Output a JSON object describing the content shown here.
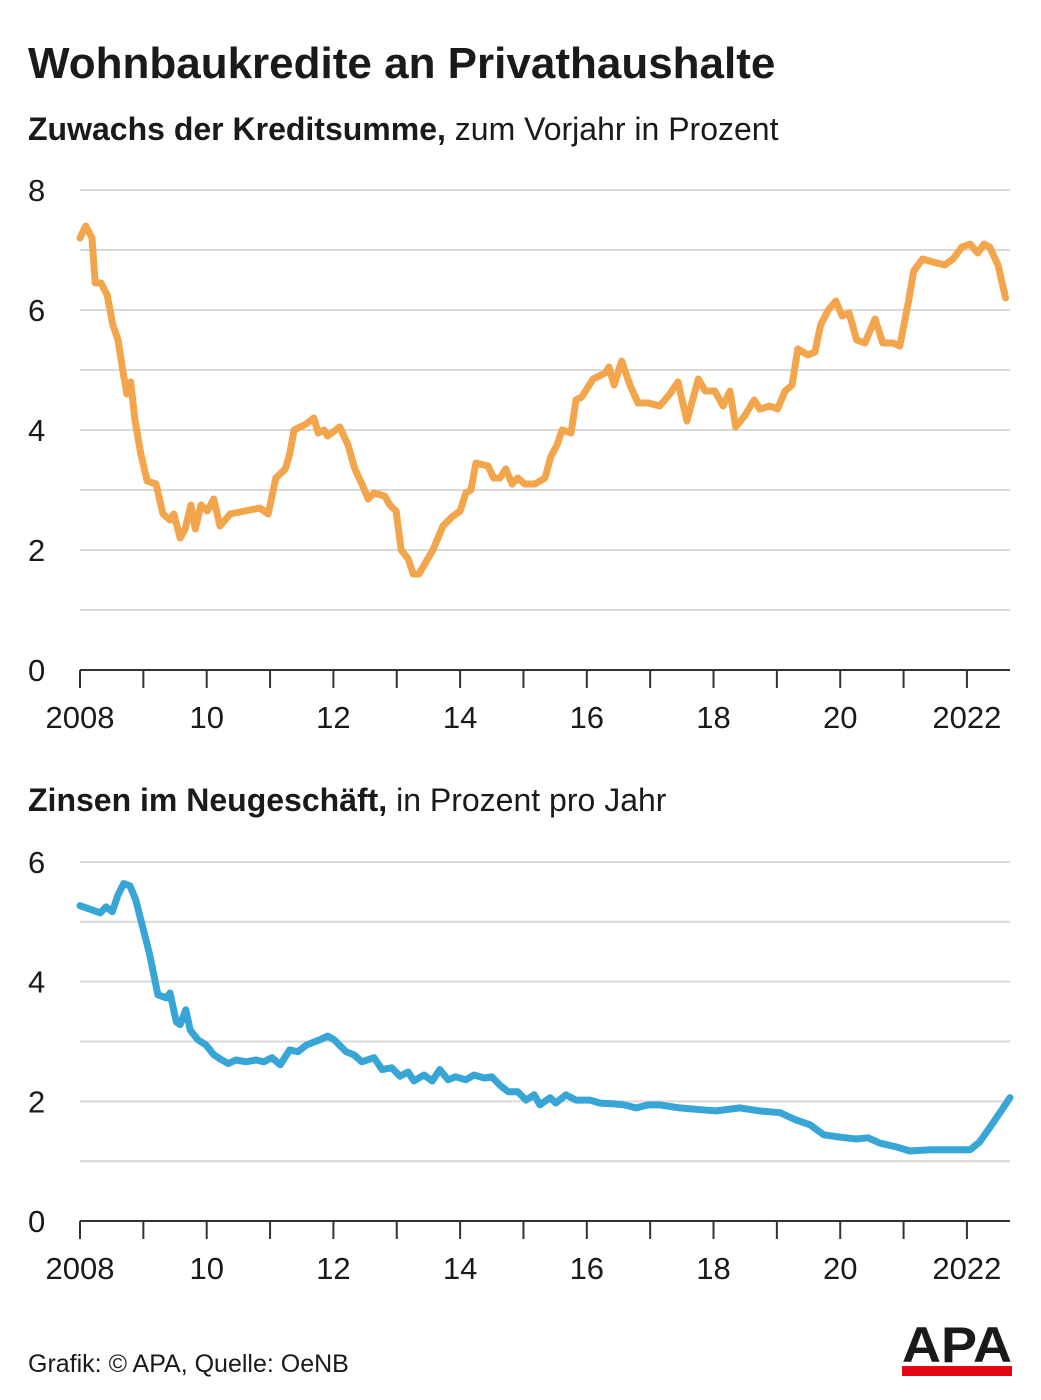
{
  "header": {
    "title": "Wohnbaukredite an Privathaushalte"
  },
  "chart_data": [
    {
      "type": "line",
      "subtitle_bold": "Zuwachs der Kreditsumme,",
      "subtitle": " zum Vorjahr in Prozent",
      "color": "#f2a54a",
      "x": [
        2008.0,
        2008.09,
        2008.19,
        2008.24,
        2008.33,
        2008.43,
        2008.52,
        2008.6,
        2008.69,
        2008.74,
        2008.8,
        2008.87,
        2008.96,
        2009.06,
        2009.2,
        2009.31,
        2009.42,
        2009.48,
        2009.58,
        2009.66,
        2009.75,
        2009.82,
        2009.91,
        2010.01,
        2010.11,
        2010.21,
        2010.37,
        2010.6,
        2010.84,
        2010.97,
        2011.09,
        2011.24,
        2011.31,
        2011.38,
        2011.57,
        2011.69,
        2011.76,
        2011.85,
        2011.91,
        2012.1,
        2012.23,
        2012.34,
        2012.45,
        2012.55,
        2012.64,
        2012.81,
        2012.89,
        2012.99,
        2013.07,
        2013.18,
        2013.26,
        2013.35,
        2013.57,
        2013.73,
        2013.87,
        2014.0,
        2014.09,
        2014.17,
        2014.25,
        2014.44,
        2014.53,
        2014.63,
        2014.72,
        2014.82,
        2014.91,
        2015.02,
        2015.18,
        2015.34,
        2015.43,
        2015.53,
        2015.61,
        2015.75,
        2015.83,
        2015.92,
        2016.1,
        2016.29,
        2016.35,
        2016.43,
        2016.55,
        2016.68,
        2016.81,
        2016.97,
        2017.15,
        2017.31,
        2017.44,
        2017.58,
        2017.76,
        2017.87,
        2018.02,
        2018.15,
        2018.26,
        2018.35,
        2018.5,
        2018.64,
        2018.73,
        2018.89,
        2019.01,
        2019.13,
        2019.24,
        2019.33,
        2019.49,
        2019.6,
        2019.69,
        2019.81,
        2019.93,
        2020.03,
        2020.14,
        2020.26,
        2020.39,
        2020.55,
        2020.67,
        2020.83,
        2020.94,
        2021.08,
        2021.16,
        2021.3,
        2021.46,
        2021.65,
        2021.78,
        2021.92,
        2022.05,
        2022.17,
        2022.27,
        2022.36,
        2022.49,
        2022.61
      ],
      "values": [
        7.2,
        7.4,
        7.2,
        6.45,
        6.45,
        6.25,
        5.75,
        5.5,
        4.9,
        4.6,
        4.8,
        4.15,
        3.6,
        3.15,
        3.1,
        2.6,
        2.5,
        2.6,
        2.2,
        2.35,
        2.75,
        2.35,
        2.75,
        2.65,
        2.85,
        2.4,
        2.6,
        2.65,
        2.7,
        2.6,
        3.2,
        3.35,
        3.6,
        4.0,
        4.1,
        4.2,
        3.95,
        4.0,
        3.9,
        4.05,
        3.75,
        3.35,
        3.1,
        2.85,
        2.95,
        2.9,
        2.75,
        2.65,
        2.0,
        1.85,
        1.6,
        1.6,
        2.0,
        2.4,
        2.55,
        2.65,
        2.95,
        3.0,
        3.45,
        3.4,
        3.2,
        3.2,
        3.35,
        3.1,
        3.2,
        3.1,
        3.1,
        3.2,
        3.55,
        3.75,
        4.0,
        3.95,
        4.5,
        4.55,
        4.85,
        4.95,
        5.05,
        4.75,
        5.15,
        4.75,
        4.45,
        4.45,
        4.4,
        4.6,
        4.8,
        4.15,
        4.85,
        4.65,
        4.65,
        4.4,
        4.65,
        4.05,
        4.25,
        4.5,
        4.35,
        4.4,
        4.35,
        4.65,
        4.75,
        5.35,
        5.25,
        5.3,
        5.75,
        6.0,
        6.15,
        5.9,
        5.95,
        5.5,
        5.45,
        5.85,
        5.45,
        5.45,
        5.4,
        6.15,
        6.65,
        6.85,
        6.8,
        6.75,
        6.85,
        7.05,
        7.1,
        6.95,
        7.1,
        7.05,
        6.75,
        6.2
      ],
      "xlim": [
        2008,
        2022.68
      ],
      "xticks": [
        2008,
        {
          "value": 2010,
          "label": "10"
        },
        {
          "value": 2012,
          "label": "12"
        },
        {
          "value": 2014,
          "label": "14"
        },
        {
          "value": 2016,
          "label": "16"
        },
        {
          "value": 2018,
          "label": "18"
        },
        {
          "value": 2020,
          "label": "20"
        },
        2022
      ],
      "ylim": [
        0,
        8
      ],
      "yticks": [
        0,
        2,
        4,
        6,
        8
      ],
      "grid": true
    },
    {
      "type": "line",
      "subtitle_bold": "Zinsen im Neugeschäft,",
      "subtitle": " in Prozent pro Jahr",
      "color": "#37a6d6",
      "x": [
        2008.0,
        2008.19,
        2008.32,
        2008.41,
        2008.51,
        2008.6,
        2008.69,
        2008.79,
        2008.88,
        2008.98,
        2009.1,
        2009.23,
        2009.36,
        2009.42,
        2009.52,
        2009.58,
        2009.67,
        2009.74,
        2009.86,
        2009.99,
        2010.11,
        2010.24,
        2010.34,
        2010.46,
        2010.62,
        2010.78,
        2010.9,
        2011.03,
        2011.16,
        2011.31,
        2011.44,
        2011.57,
        2011.69,
        2011.79,
        2011.91,
        2012.01,
        2012.2,
        2012.32,
        2012.45,
        2012.64,
        2012.77,
        2012.92,
        2013.05,
        2013.18,
        2013.27,
        2013.43,
        2013.56,
        2013.68,
        2013.81,
        2013.93,
        2014.09,
        2014.22,
        2014.38,
        2014.5,
        2014.63,
        2014.76,
        2014.91,
        2015.04,
        2015.17,
        2015.26,
        2015.42,
        2015.51,
        2015.67,
        2015.83,
        2016.05,
        2016.21,
        2016.4,
        2016.59,
        2016.78,
        2016.97,
        2017.15,
        2017.47,
        2017.79,
        2018.04,
        2018.42,
        2018.73,
        2019.05,
        2019.3,
        2019.52,
        2019.74,
        2020.0,
        2020.25,
        2020.44,
        2020.63,
        2020.88,
        2021.1,
        2021.42,
        2021.67,
        2021.89,
        2022.05,
        2022.2,
        2022.36,
        2022.52,
        2022.68
      ],
      "values": [
        5.27,
        5.2,
        5.15,
        5.25,
        5.17,
        5.45,
        5.64,
        5.6,
        5.37,
        4.95,
        4.45,
        3.78,
        3.73,
        3.81,
        3.33,
        3.28,
        3.53,
        3.19,
        3.03,
        2.94,
        2.78,
        2.69,
        2.63,
        2.69,
        2.66,
        2.69,
        2.66,
        2.73,
        2.61,
        2.86,
        2.83,
        2.94,
        2.99,
        3.03,
        3.09,
        3.03,
        2.83,
        2.78,
        2.66,
        2.73,
        2.53,
        2.56,
        2.42,
        2.49,
        2.34,
        2.44,
        2.34,
        2.53,
        2.36,
        2.41,
        2.36,
        2.44,
        2.39,
        2.41,
        2.27,
        2.16,
        2.16,
        2.02,
        2.11,
        1.94,
        2.06,
        1.97,
        2.11,
        2.02,
        2.02,
        1.97,
        1.96,
        1.94,
        1.89,
        1.94,
        1.94,
        1.89,
        1.86,
        1.84,
        1.89,
        1.84,
        1.81,
        1.69,
        1.61,
        1.44,
        1.4,
        1.37,
        1.39,
        1.3,
        1.24,
        1.17,
        1.19,
        1.19,
        1.19,
        1.19,
        1.32,
        1.56,
        1.81,
        2.06
      ],
      "xlim": [
        2008,
        2022.68
      ],
      "xticks": [
        2008,
        {
          "value": 2010,
          "label": "10"
        },
        {
          "value": 2012,
          "label": "12"
        },
        {
          "value": 2014,
          "label": "14"
        },
        {
          "value": 2016,
          "label": "16"
        },
        {
          "value": 2018,
          "label": "18"
        },
        {
          "value": 2020,
          "label": "20"
        },
        2022
      ],
      "ylim": [
        0,
        6
      ],
      "yticks": [
        0,
        2,
        4,
        6
      ],
      "grid": true
    }
  ],
  "footer": {
    "source": "Grafik: © APA, Quelle: OeNB",
    "logo": "APA"
  }
}
